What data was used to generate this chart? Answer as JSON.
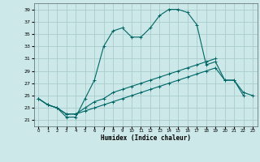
{
  "xlabel": "Humidex (Indice chaleur)",
  "bg_color": "#cde8e8",
  "grid_color": "#aacccc",
  "line_color": "#006666",
  "xlim": [
    -0.5,
    23.5
  ],
  "ylim": [
    20,
    40
  ],
  "xticks": [
    0,
    1,
    2,
    3,
    4,
    5,
    6,
    7,
    8,
    9,
    10,
    11,
    12,
    13,
    14,
    15,
    16,
    17,
    18,
    19,
    20,
    21,
    22,
    23
  ],
  "yticks": [
    21,
    23,
    25,
    27,
    29,
    31,
    33,
    35,
    37,
    39
  ],
  "line1_x": [
    0,
    1,
    2,
    3,
    4,
    5,
    6,
    7,
    8,
    9,
    10,
    11,
    12,
    13,
    14,
    15,
    16,
    17,
    18,
    19,
    20,
    21,
    22
  ],
  "line1_y": [
    24.5,
    23.5,
    23.0,
    21.5,
    21.5,
    24.5,
    27.5,
    33.0,
    35.5,
    36.0,
    34.5,
    34.5,
    36.0,
    38.0,
    39.0,
    39.0,
    38.5,
    36.5,
    30.0,
    30.5,
    27.5,
    27.5,
    25.0
  ],
  "line2_x": [
    0,
    1,
    2,
    3,
    4,
    5,
    6,
    7,
    8,
    9,
    10,
    11,
    12,
    13,
    14,
    15,
    16,
    17,
    18,
    19
  ],
  "line2_y": [
    24.5,
    23.5,
    23.0,
    22.0,
    22.0,
    23.0,
    24.0,
    24.5,
    25.5,
    26.0,
    26.5,
    27.0,
    27.5,
    28.0,
    28.5,
    29.0,
    29.5,
    30.0,
    30.5,
    31.0
  ],
  "line3_x": [
    0,
    1,
    2,
    3,
    4,
    5,
    6,
    7,
    8,
    9,
    10,
    11,
    12,
    13,
    14,
    15,
    16,
    17,
    18,
    19,
    20,
    21,
    22,
    23
  ],
  "line3_y": [
    24.5,
    23.5,
    23.0,
    22.0,
    22.0,
    22.5,
    23.0,
    23.5,
    24.0,
    24.5,
    25.0,
    25.5,
    26.0,
    26.5,
    27.0,
    27.5,
    28.0,
    28.5,
    29.0,
    29.5,
    27.5,
    27.5,
    25.5,
    25.0
  ]
}
